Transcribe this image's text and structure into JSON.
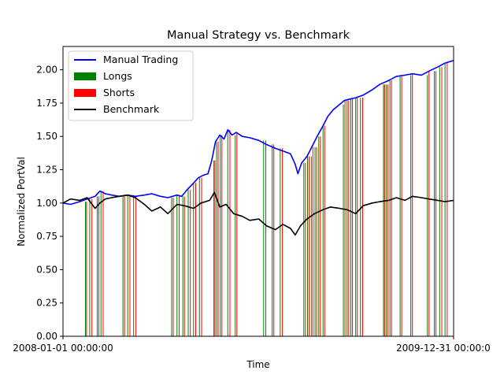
{
  "chart_data": {
    "type": "line",
    "title": "Manual Strategy vs. Benchmark",
    "xlabel": "Time",
    "ylabel": "Normalized PortVal",
    "xlim": [
      "2008-01-01",
      "2009-12-31"
    ],
    "x_tick_labels": [
      "2008-01-01 00:00:00",
      "2009-12-31 00:00:0"
    ],
    "ylim": [
      0,
      2.175
    ],
    "y_ticks": [
      0.0,
      0.25,
      0.5,
      0.75,
      1.0,
      1.25,
      1.5,
      1.75,
      2.0
    ],
    "y_tick_labels": [
      "0.00",
      "0.25",
      "0.50",
      "0.75",
      "1.00",
      "1.25",
      "1.50",
      "1.75",
      "2.00"
    ],
    "grid": false,
    "legend_position": "top-left",
    "legend": [
      {
        "label": "Manual Trading",
        "kind": "line",
        "color": "#0000ff"
      },
      {
        "label": "Longs",
        "kind": "patch",
        "color": "#008000"
      },
      {
        "label": "Shorts",
        "kind": "patch",
        "color": "#ff0000"
      },
      {
        "label": "Benchmark",
        "kind": "line",
        "color": "#000000"
      }
    ],
    "series": [
      {
        "name": "Manual Trading",
        "color": "#0000ff",
        "points": [
          [
            "2008-01-01",
            1.0
          ],
          [
            "2008-01-15",
            0.99
          ],
          [
            "2008-02-01",
            1.01
          ],
          [
            "2008-02-15",
            1.03
          ],
          [
            "2008-03-01",
            1.05
          ],
          [
            "2008-03-10",
            1.09
          ],
          [
            "2008-03-20",
            1.07
          ],
          [
            "2008-04-01",
            1.06
          ],
          [
            "2008-04-15",
            1.05
          ],
          [
            "2008-05-01",
            1.06
          ],
          [
            "2008-05-15",
            1.05
          ],
          [
            "2008-06-01",
            1.06
          ],
          [
            "2008-06-15",
            1.07
          ],
          [
            "2008-07-01",
            1.05
          ],
          [
            "2008-07-15",
            1.04
          ],
          [
            "2008-08-01",
            1.06
          ],
          [
            "2008-08-10",
            1.05
          ],
          [
            "2008-08-20",
            1.1
          ],
          [
            "2008-09-01",
            1.15
          ],
          [
            "2008-09-10",
            1.19
          ],
          [
            "2008-09-20",
            1.21
          ],
          [
            "2008-09-28",
            1.22
          ],
          [
            "2008-10-05",
            1.32
          ],
          [
            "2008-10-12",
            1.46
          ],
          [
            "2008-10-20",
            1.51
          ],
          [
            "2008-10-28",
            1.48
          ],
          [
            "2008-11-04",
            1.55
          ],
          [
            "2008-11-12",
            1.51
          ],
          [
            "2008-11-20",
            1.53
          ],
          [
            "2008-12-01",
            1.5
          ],
          [
            "2008-12-15",
            1.49
          ],
          [
            "2009-01-01",
            1.47
          ],
          [
            "2009-01-15",
            1.44
          ],
          [
            "2009-02-01",
            1.41
          ],
          [
            "2009-02-15",
            1.39
          ],
          [
            "2009-03-01",
            1.37
          ],
          [
            "2009-03-10",
            1.29
          ],
          [
            "2009-03-15",
            1.22
          ],
          [
            "2009-03-22",
            1.3
          ],
          [
            "2009-04-01",
            1.35
          ],
          [
            "2009-04-10",
            1.42
          ],
          [
            "2009-04-20",
            1.5
          ],
          [
            "2009-05-01",
            1.58
          ],
          [
            "2009-05-10",
            1.65
          ],
          [
            "2009-05-20",
            1.7
          ],
          [
            "2009-06-01",
            1.74
          ],
          [
            "2009-06-10",
            1.77
          ],
          [
            "2009-06-20",
            1.78
          ],
          [
            "2009-07-01",
            1.79
          ],
          [
            "2009-07-15",
            1.81
          ],
          [
            "2009-08-01",
            1.85
          ],
          [
            "2009-08-15",
            1.89
          ],
          [
            "2009-09-01",
            1.92
          ],
          [
            "2009-09-15",
            1.95
          ],
          [
            "2009-10-01",
            1.96
          ],
          [
            "2009-10-15",
            1.97
          ],
          [
            "2009-11-01",
            1.96
          ],
          [
            "2009-11-15",
            1.99
          ],
          [
            "2009-12-01",
            2.02
          ],
          [
            "2009-12-15",
            2.05
          ],
          [
            "2009-12-31",
            2.07
          ]
        ]
      },
      {
        "name": "Benchmark",
        "color": "#000000",
        "points": [
          [
            "2008-01-01",
            1.0
          ],
          [
            "2008-01-15",
            1.03
          ],
          [
            "2008-02-01",
            1.02
          ],
          [
            "2008-02-15",
            1.04
          ],
          [
            "2008-03-01",
            0.96
          ],
          [
            "2008-03-10",
            1.0
          ],
          [
            "2008-03-20",
            1.03
          ],
          [
            "2008-04-01",
            1.04
          ],
          [
            "2008-04-15",
            1.05
          ],
          [
            "2008-05-01",
            1.06
          ],
          [
            "2008-05-15",
            1.04
          ],
          [
            "2008-06-01",
            0.99
          ],
          [
            "2008-06-15",
            0.94
          ],
          [
            "2008-07-01",
            0.97
          ],
          [
            "2008-07-15",
            0.92
          ],
          [
            "2008-08-01",
            0.99
          ],
          [
            "2008-08-15",
            0.98
          ],
          [
            "2008-09-01",
            0.96
          ],
          [
            "2008-09-15",
            1.0
          ],
          [
            "2008-10-01",
            1.02
          ],
          [
            "2008-10-10",
            1.08
          ],
          [
            "2008-10-20",
            0.97
          ],
          [
            "2008-11-01",
            0.99
          ],
          [
            "2008-11-15",
            0.92
          ],
          [
            "2008-12-01",
            0.9
          ],
          [
            "2008-12-15",
            0.87
          ],
          [
            "2009-01-01",
            0.88
          ],
          [
            "2009-01-15",
            0.83
          ],
          [
            "2009-02-01",
            0.8
          ],
          [
            "2009-02-15",
            0.84
          ],
          [
            "2009-03-01",
            0.81
          ],
          [
            "2009-03-10",
            0.76
          ],
          [
            "2009-03-20",
            0.83
          ],
          [
            "2009-04-01",
            0.88
          ],
          [
            "2009-04-15",
            0.92
          ],
          [
            "2009-05-01",
            0.95
          ],
          [
            "2009-05-15",
            0.97
          ],
          [
            "2009-06-01",
            0.96
          ],
          [
            "2009-06-15",
            0.95
          ],
          [
            "2009-07-01",
            0.92
          ],
          [
            "2009-07-15",
            0.98
          ],
          [
            "2009-08-01",
            1.0
          ],
          [
            "2009-08-15",
            1.01
          ],
          [
            "2009-09-01",
            1.02
          ],
          [
            "2009-09-15",
            1.04
          ],
          [
            "2009-10-01",
            1.02
          ],
          [
            "2009-10-15",
            1.05
          ],
          [
            "2009-11-01",
            1.04
          ],
          [
            "2009-11-15",
            1.03
          ],
          [
            "2009-12-01",
            1.02
          ],
          [
            "2009-12-15",
            1.01
          ],
          [
            "2009-12-31",
            1.02
          ]
        ]
      }
    ],
    "longs": [
      "2008-02-12",
      "2008-02-20",
      "2008-03-05",
      "2008-03-12",
      "2008-04-22",
      "2008-05-01",
      "2008-05-12",
      "2008-07-22",
      "2008-08-01",
      "2008-08-12",
      "2008-08-22",
      "2008-09-01",
      "2008-09-12",
      "2008-10-09",
      "2008-10-14",
      "2008-10-21",
      "2008-11-04",
      "2008-11-18",
      "2009-01-10",
      "2009-01-26",
      "2009-02-10",
      "2009-03-26",
      "2009-04-02",
      "2009-04-09",
      "2009-04-16",
      "2009-04-23",
      "2009-05-01",
      "2009-06-08",
      "2009-06-15",
      "2009-06-22",
      "2009-07-01",
      "2009-07-10",
      "2009-08-22",
      "2009-08-27",
      "2009-09-03",
      "2009-09-22",
      "2009-10-12",
      "2009-11-12",
      "2009-11-25",
      "2009-12-05",
      "2009-12-15"
    ],
    "shorts": [
      "2008-02-14",
      "2008-02-24",
      "2008-03-08",
      "2008-03-16",
      "2008-04-25",
      "2008-05-05",
      "2008-05-16",
      "2008-07-25",
      "2008-08-05",
      "2008-08-15",
      "2008-08-26",
      "2008-09-05",
      "2008-09-16",
      "2008-10-11",
      "2008-10-17",
      "2008-10-24",
      "2008-11-08",
      "2008-11-21",
      "2009-01-14",
      "2009-01-29",
      "2009-02-14",
      "2009-03-29",
      "2009-04-05",
      "2009-04-12",
      "2009-04-19",
      "2009-04-26",
      "2009-05-04",
      "2009-06-11",
      "2009-06-18",
      "2009-06-25",
      "2009-07-04",
      "2009-07-14",
      "2009-08-24",
      "2009-08-30",
      "2009-09-06",
      "2009-09-25",
      "2009-10-15",
      "2009-11-15",
      "2009-11-28",
      "2009-12-09",
      "2009-12-19"
    ]
  }
}
